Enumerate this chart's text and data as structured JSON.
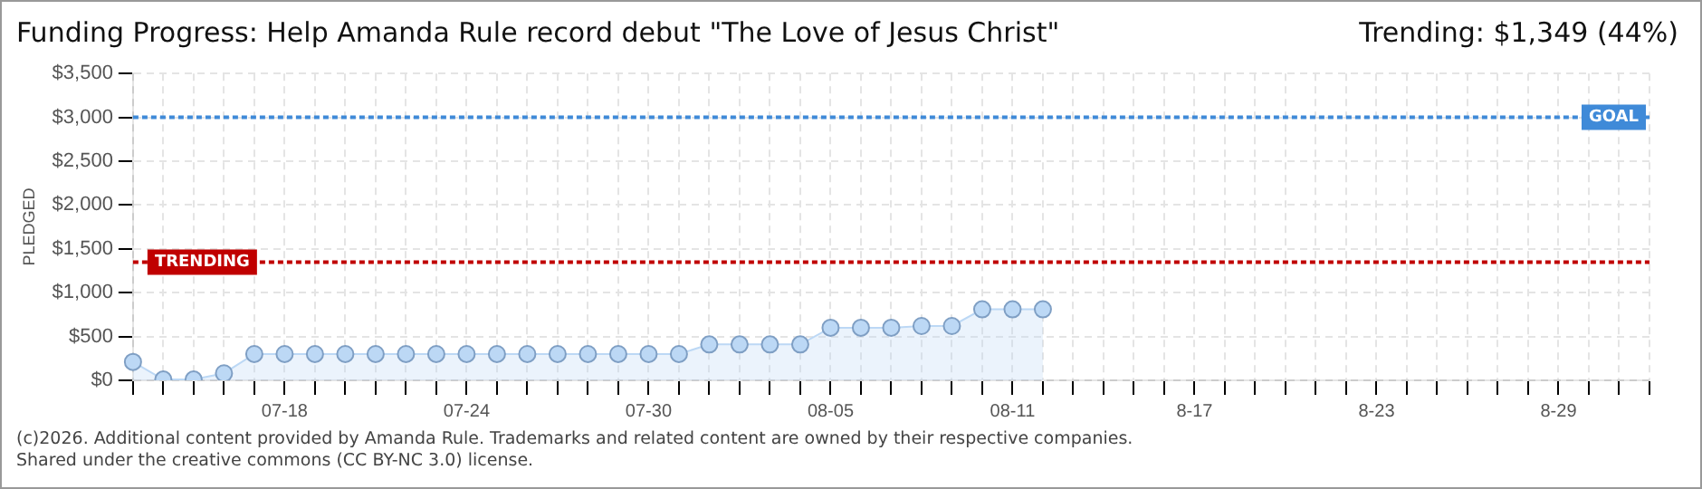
{
  "chart_data": {
    "type": "area",
    "title": "Funding Progress: Help Amanda Rule record debut \"The Love of Jesus Christ\"",
    "subtitle": "Trending: $1,349 (44%)",
    "ylabel": "PLEDGED",
    "categories": [
      null,
      null,
      null,
      null,
      null,
      "07-18",
      null,
      null,
      null,
      null,
      null,
      "07-24",
      null,
      null,
      null,
      null,
      null,
      "07-30",
      null,
      null,
      null,
      null,
      null,
      "08-05",
      null,
      null,
      null,
      null,
      null,
      "08-11",
      null,
      null,
      null,
      null,
      null,
      "8-17",
      null,
      null,
      null,
      null,
      null,
      "8-23",
      null,
      null,
      null,
      null,
      null,
      "8-29",
      null,
      null,
      null
    ],
    "series": [
      {
        "color": "#bcd8f5",
        "values": [
          210,
          10,
          10,
          80,
          300,
          300,
          300,
          300,
          300,
          300,
          300,
          300,
          300,
          300,
          300,
          300,
          300,
          300,
          300,
          410,
          410,
          410,
          410,
          600,
          600,
          600,
          620,
          620,
          810,
          810,
          810,
          null,
          null,
          null,
          null,
          null,
          null,
          null,
          null,
          null,
          null,
          null,
          null,
          null,
          null,
          null,
          null,
          null,
          null,
          null,
          null
        ]
      }
    ],
    "ylim": [
      0,
      3500
    ],
    "yticks": [
      {
        "value": 0,
        "label": "$0"
      },
      {
        "value": 500,
        "label": "$500"
      },
      {
        "value": 1000,
        "label": "$1,000"
      },
      {
        "value": 1500,
        "label": "$1,500"
      },
      {
        "value": 2000,
        "label": "$2,000"
      },
      {
        "value": 2500,
        "label": "$2,500"
      },
      {
        "value": 3000,
        "label": "$3,000"
      },
      {
        "value": 3500,
        "label": "$3,500"
      }
    ],
    "ref_lines": [
      {
        "axis": "y",
        "value": 3000,
        "label": "GOAL",
        "color": "#3f8ad8",
        "line_style": "dotted"
      },
      {
        "axis": "y",
        "value": 1349,
        "label": "TRENDING",
        "color": "#c00000",
        "line_style": "dotted"
      }
    ],
    "grid": true,
    "marker": "circle",
    "legend": false,
    "annotations": [
      "(c)2026. Additional content provided by Amanda Rule. Trademarks and related content are owned by their respective companies.",
      "Shared under the creative commons (CC BY-NC 3.0) license."
    ]
  }
}
